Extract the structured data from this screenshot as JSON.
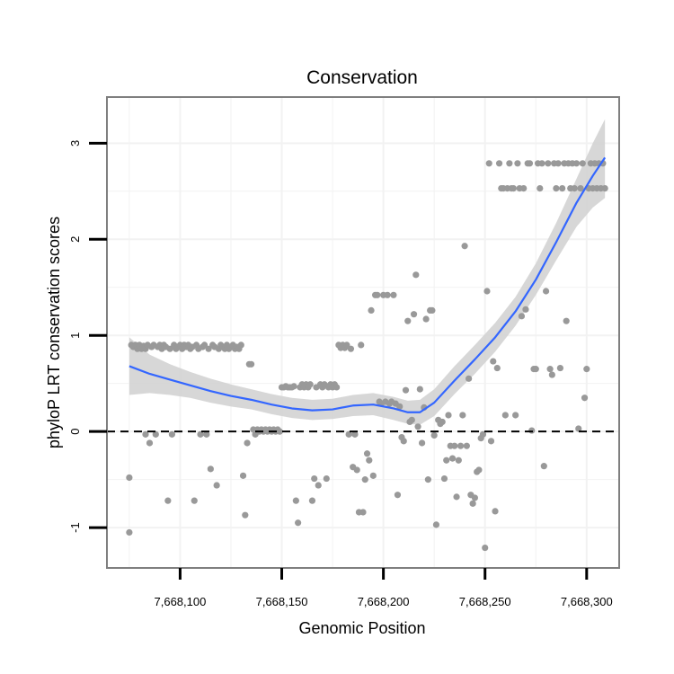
{
  "chart_data": {
    "type": "scatter",
    "title": "Conservation",
    "xlabel": "Genomic Position",
    "ylabel": "phyloP LRT conservation scores",
    "xlim": [
      7668064,
      7668316
    ],
    "ylim": [
      -1.42,
      3.48
    ],
    "x_ticks": [
      {
        "value": 7668100,
        "label": "7,668,100"
      },
      {
        "value": 7668150,
        "label": "7,668,150"
      },
      {
        "value": 7668200,
        "label": "7,668,200"
      },
      {
        "value": 7668250,
        "label": "7,668,250"
      },
      {
        "value": 7668300,
        "label": "7,668,300"
      }
    ],
    "y_ticks": [
      {
        "value": -1,
        "label": "-1"
      },
      {
        "value": 0,
        "label": "0"
      },
      {
        "value": 1,
        "label": "1"
      },
      {
        "value": 2,
        "label": "2"
      },
      {
        "value": 3,
        "label": "3"
      }
    ],
    "grid": true,
    "reference_line": {
      "y": 0,
      "style": "dashed"
    },
    "colors": {
      "points": "#999999",
      "smooth": "#3366ff",
      "ribbon": "#d3d3d3",
      "border": "#7f7f7f",
      "grid": "#f2f2f2",
      "reference": "#000000"
    },
    "points": [
      {
        "x": 7668075,
        "y": -0.48
      },
      {
        "x": 7668075,
        "y": -1.05
      },
      {
        "x": 7668076,
        "y": 0.9
      },
      {
        "x": 7668077,
        "y": 0.88
      },
      {
        "x": 7668078,
        "y": 0.9
      },
      {
        "x": 7668079,
        "y": 0.86
      },
      {
        "x": 7668080,
        "y": 0.9
      },
      {
        "x": 7668081,
        "y": 0.86
      },
      {
        "x": 7668082,
        "y": 0.89
      },
      {
        "x": 7668083,
        "y": -0.03
      },
      {
        "x": 7668083,
        "y": 0.86
      },
      {
        "x": 7668084,
        "y": 0.9
      },
      {
        "x": 7668085,
        "y": -0.12
      },
      {
        "x": 7668086,
        "y": 0.88
      },
      {
        "x": 7668087,
        "y": 0.9
      },
      {
        "x": 7668088,
        "y": -0.03
      },
      {
        "x": 7668089,
        "y": 0.88
      },
      {
        "x": 7668090,
        "y": 0.9
      },
      {
        "x": 7668091,
        "y": 0.86
      },
      {
        "x": 7668092,
        "y": 0.9
      },
      {
        "x": 7668093,
        "y": 0.88
      },
      {
        "x": 7668094,
        "y": -0.72
      },
      {
        "x": 7668095,
        "y": 0.86
      },
      {
        "x": 7668096,
        "y": -0.03
      },
      {
        "x": 7668097,
        "y": 0.9
      },
      {
        "x": 7668098,
        "y": 0.86
      },
      {
        "x": 7668099,
        "y": 0.88
      },
      {
        "x": 7668100,
        "y": 0.9
      },
      {
        "x": 7668101,
        "y": 0.86
      },
      {
        "x": 7668102,
        "y": 0.9
      },
      {
        "x": 7668103,
        "y": 0.88
      },
      {
        "x": 7668104,
        "y": 0.9
      },
      {
        "x": 7668105,
        "y": 0.86
      },
      {
        "x": 7668106,
        "y": 0.88
      },
      {
        "x": 7668107,
        "y": -0.72
      },
      {
        "x": 7668108,
        "y": 0.9
      },
      {
        "x": 7668109,
        "y": 0.86
      },
      {
        "x": 7668110,
        "y": -0.03
      },
      {
        "x": 7668111,
        "y": 0.88
      },
      {
        "x": 7668112,
        "y": 0.9
      },
      {
        "x": 7668113,
        "y": -0.03
      },
      {
        "x": 7668114,
        "y": 0.86
      },
      {
        "x": 7668115,
        "y": -0.39
      },
      {
        "x": 7668116,
        "y": 0.9
      },
      {
        "x": 7668117,
        "y": 0.88
      },
      {
        "x": 7668118,
        "y": -0.56
      },
      {
        "x": 7668119,
        "y": 0.86
      },
      {
        "x": 7668120,
        "y": 0.9
      },
      {
        "x": 7668121,
        "y": 0.88
      },
      {
        "x": 7668122,
        "y": 0.86
      },
      {
        "x": 7668123,
        "y": 0.9
      },
      {
        "x": 7668124,
        "y": 0.86
      },
      {
        "x": 7668125,
        "y": 0.88
      },
      {
        "x": 7668126,
        "y": 0.9
      },
      {
        "x": 7668127,
        "y": 0.86
      },
      {
        "x": 7668128,
        "y": 0.88
      },
      {
        "x": 7668129,
        "y": 0.86
      },
      {
        "x": 7668130,
        "y": 0.9
      },
      {
        "x": 7668131,
        "y": -0.46
      },
      {
        "x": 7668132,
        "y": -0.87
      },
      {
        "x": 7668133,
        "y": -0.12
      },
      {
        "x": 7668134,
        "y": 0.7
      },
      {
        "x": 7668135,
        "y": 0.7
      },
      {
        "x": 7668136,
        "y": 0.02
      },
      {
        "x": 7668137,
        "y": -0.03
      },
      {
        "x": 7668138,
        "y": 0.02
      },
      {
        "x": 7668139,
        "y": 0.0
      },
      {
        "x": 7668140,
        "y": 0.02
      },
      {
        "x": 7668141,
        "y": 0.0
      },
      {
        "x": 7668142,
        "y": 0.02
      },
      {
        "x": 7668143,
        "y": 0.0
      },
      {
        "x": 7668144,
        "y": 0.02
      },
      {
        "x": 7668145,
        "y": 0.0
      },
      {
        "x": 7668146,
        "y": 0.02
      },
      {
        "x": 7668147,
        "y": 0.0
      },
      {
        "x": 7668148,
        "y": 0.02
      },
      {
        "x": 7668149,
        "y": 0.0
      },
      {
        "x": 7668150,
        "y": 0.46
      },
      {
        "x": 7668151,
        "y": 0.46
      },
      {
        "x": 7668152,
        "y": 0.47
      },
      {
        "x": 7668153,
        "y": 0.46
      },
      {
        "x": 7668154,
        "y": 0.46
      },
      {
        "x": 7668155,
        "y": 0.46
      },
      {
        "x": 7668156,
        "y": 0.47
      },
      {
        "x": 7668157,
        "y": -0.72
      },
      {
        "x": 7668158,
        "y": -0.95
      },
      {
        "x": 7668159,
        "y": 0.46
      },
      {
        "x": 7668160,
        "y": 0.49
      },
      {
        "x": 7668161,
        "y": 0.46
      },
      {
        "x": 7668162,
        "y": 0.49
      },
      {
        "x": 7668163,
        "y": 0.46
      },
      {
        "x": 7668164,
        "y": 0.49
      },
      {
        "x": 7668165,
        "y": -0.72
      },
      {
        "x": 7668166,
        "y": -0.49
      },
      {
        "x": 7668167,
        "y": 0.46
      },
      {
        "x": 7668168,
        "y": -0.56
      },
      {
        "x": 7668169,
        "y": 0.49
      },
      {
        "x": 7668170,
        "y": 0.46
      },
      {
        "x": 7668171,
        "y": 0.49
      },
      {
        "x": 7668172,
        "y": -0.49
      },
      {
        "x": 7668173,
        "y": 0.46
      },
      {
        "x": 7668174,
        "y": 0.49
      },
      {
        "x": 7668175,
        "y": 0.46
      },
      {
        "x": 7668176,
        "y": 0.49
      },
      {
        "x": 7668177,
        "y": 0.46
      },
      {
        "x": 7668178,
        "y": 0.9
      },
      {
        "x": 7668179,
        "y": 0.87
      },
      {
        "x": 7668180,
        "y": 0.9
      },
      {
        "x": 7668181,
        "y": 0.87
      },
      {
        "x": 7668182,
        "y": 0.9
      },
      {
        "x": 7668183,
        "y": -0.03
      },
      {
        "x": 7668184,
        "y": 0.86
      },
      {
        "x": 7668185,
        "y": -0.37
      },
      {
        "x": 7668186,
        "y": -0.03
      },
      {
        "x": 7668187,
        "y": -0.4
      },
      {
        "x": 7668188,
        "y": -0.84
      },
      {
        "x": 7668189,
        "y": 0.9
      },
      {
        "x": 7668190,
        "y": -0.84
      },
      {
        "x": 7668191,
        "y": -0.5
      },
      {
        "x": 7668192,
        "y": -0.23
      },
      {
        "x": 7668193,
        "y": -0.3
      },
      {
        "x": 7668194,
        "y": 1.26
      },
      {
        "x": 7668195,
        "y": -0.46
      },
      {
        "x": 7668196,
        "y": 1.42
      },
      {
        "x": 7668197,
        "y": 1.42
      },
      {
        "x": 7668198,
        "y": 0.31
      },
      {
        "x": 7668199,
        "y": 0.29
      },
      {
        "x": 7668200,
        "y": 1.42
      },
      {
        "x": 7668201,
        "y": 0.31
      },
      {
        "x": 7668202,
        "y": 1.42
      },
      {
        "x": 7668203,
        "y": 0.29
      },
      {
        "x": 7668204,
        "y": 0.31
      },
      {
        "x": 7668205,
        "y": 1.42
      },
      {
        "x": 7668206,
        "y": 0.29
      },
      {
        "x": 7668207,
        "y": -0.66
      },
      {
        "x": 7668208,
        "y": 0.26
      },
      {
        "x": 7668209,
        "y": -0.06
      },
      {
        "x": 7668210,
        "y": -0.1
      },
      {
        "x": 7668211,
        "y": 0.43
      },
      {
        "x": 7668212,
        "y": 1.15
      },
      {
        "x": 7668213,
        "y": 0.1
      },
      {
        "x": 7668214,
        "y": 0.12
      },
      {
        "x": 7668215,
        "y": 1.22
      },
      {
        "x": 7668216,
        "y": 1.63
      },
      {
        "x": 7668217,
        "y": 0.05
      },
      {
        "x": 7668218,
        "y": 0.44
      },
      {
        "x": 7668219,
        "y": -0.12
      },
      {
        "x": 7668220,
        "y": 0.25
      },
      {
        "x": 7668221,
        "y": 1.17
      },
      {
        "x": 7668222,
        "y": -0.5
      },
      {
        "x": 7668223,
        "y": 1.26
      },
      {
        "x": 7668224,
        "y": 1.26
      },
      {
        "x": 7668225,
        "y": -0.04
      },
      {
        "x": 7668226,
        "y": -0.97
      },
      {
        "x": 7668227,
        "y": 0.12
      },
      {
        "x": 7668228,
        "y": 0.08
      },
      {
        "x": 7668229,
        "y": 0.1
      },
      {
        "x": 7668230,
        "y": -0.49
      },
      {
        "x": 7668231,
        "y": -0.3
      },
      {
        "x": 7668232,
        "y": 0.17
      },
      {
        "x": 7668233,
        "y": -0.15
      },
      {
        "x": 7668234,
        "y": -0.28
      },
      {
        "x": 7668235,
        "y": -0.15
      },
      {
        "x": 7668236,
        "y": -0.68
      },
      {
        "x": 7668237,
        "y": -0.3
      },
      {
        "x": 7668238,
        "y": -0.15
      },
      {
        "x": 7668239,
        "y": 0.17
      },
      {
        "x": 7668240,
        "y": 1.93
      },
      {
        "x": 7668241,
        "y": -0.15
      },
      {
        "x": 7668242,
        "y": 0.55
      },
      {
        "x": 7668243,
        "y": -0.66
      },
      {
        "x": 7668244,
        "y": -0.75
      },
      {
        "x": 7668245,
        "y": -0.69
      },
      {
        "x": 7668246,
        "y": -0.42
      },
      {
        "x": 7668247,
        "y": -0.4
      },
      {
        "x": 7668248,
        "y": -0.07
      },
      {
        "x": 7668249,
        "y": -0.03
      },
      {
        "x": 7668250,
        "y": -1.21
      },
      {
        "x": 7668251,
        "y": 1.46
      },
      {
        "x": 7668252,
        "y": 2.79
      },
      {
        "x": 7668253,
        "y": -0.1
      },
      {
        "x": 7668254,
        "y": 0.73
      },
      {
        "x": 7668255,
        "y": -0.83
      },
      {
        "x": 7668256,
        "y": 0.66
      },
      {
        "x": 7668257,
        "y": 2.79
      },
      {
        "x": 7668258,
        "y": 2.53
      },
      {
        "x": 7668259,
        "y": 2.53
      },
      {
        "x": 7668260,
        "y": 0.17
      },
      {
        "x": 7668261,
        "y": 2.53
      },
      {
        "x": 7668262,
        "y": 2.79
      },
      {
        "x": 7668263,
        "y": 2.53
      },
      {
        "x": 7668264,
        "y": 2.53
      },
      {
        "x": 7668265,
        "y": 0.17
      },
      {
        "x": 7668266,
        "y": 2.79
      },
      {
        "x": 7668267,
        "y": 2.53
      },
      {
        "x": 7668268,
        "y": 1.2
      },
      {
        "x": 7668269,
        "y": 2.53
      },
      {
        "x": 7668270,
        "y": 1.27
      },
      {
        "x": 7668271,
        "y": 2.79
      },
      {
        "x": 7668272,
        "y": 2.79
      },
      {
        "x": 7668273,
        "y": 0.01
      },
      {
        "x": 7668274,
        "y": 0.65
      },
      {
        "x": 7668275,
        "y": 0.65
      },
      {
        "x": 7668276,
        "y": 2.79
      },
      {
        "x": 7668277,
        "y": 2.53
      },
      {
        "x": 7668278,
        "y": 2.79
      },
      {
        "x": 7668279,
        "y": -0.36
      },
      {
        "x": 7668280,
        "y": 1.46
      },
      {
        "x": 7668281,
        "y": 2.79
      },
      {
        "x": 7668282,
        "y": 0.65
      },
      {
        "x": 7668283,
        "y": 0.59
      },
      {
        "x": 7668284,
        "y": 2.79
      },
      {
        "x": 7668285,
        "y": 2.53
      },
      {
        "x": 7668286,
        "y": 2.79
      },
      {
        "x": 7668287,
        "y": 0.66
      },
      {
        "x": 7668288,
        "y": 2.53
      },
      {
        "x": 7668289,
        "y": 2.79
      },
      {
        "x": 7668290,
        "y": 1.15
      },
      {
        "x": 7668291,
        "y": 2.79
      },
      {
        "x": 7668292,
        "y": 2.53
      },
      {
        "x": 7668293,
        "y": 2.79
      },
      {
        "x": 7668294,
        "y": 2.53
      },
      {
        "x": 7668295,
        "y": 2.79
      },
      {
        "x": 7668296,
        "y": 0.03
      },
      {
        "x": 7668297,
        "y": 2.53
      },
      {
        "x": 7668298,
        "y": 2.79
      },
      {
        "x": 7668299,
        "y": 0.35
      },
      {
        "x": 7668300,
        "y": 0.65
      },
      {
        "x": 7668301,
        "y": 2.53
      },
      {
        "x": 7668302,
        "y": 2.79
      },
      {
        "x": 7668303,
        "y": 2.53
      },
      {
        "x": 7668304,
        "y": 2.79
      },
      {
        "x": 7668305,
        "y": 2.53
      },
      {
        "x": 7668306,
        "y": 2.79
      },
      {
        "x": 7668307,
        "y": 2.53
      },
      {
        "x": 7668308,
        "y": 2.79
      },
      {
        "x": 7668309,
        "y": 2.53
      }
    ],
    "smooth": [
      {
        "x": 7668075,
        "y": 0.68,
        "lo": 0.38,
        "hi": 0.98
      },
      {
        "x": 7668085,
        "y": 0.6,
        "lo": 0.4,
        "hi": 0.8
      },
      {
        "x": 7668095,
        "y": 0.54,
        "lo": 0.38,
        "hi": 0.7
      },
      {
        "x": 7668105,
        "y": 0.48,
        "lo": 0.35,
        "hi": 0.62
      },
      {
        "x": 7668115,
        "y": 0.42,
        "lo": 0.3,
        "hi": 0.55
      },
      {
        "x": 7668125,
        "y": 0.37,
        "lo": 0.26,
        "hi": 0.49
      },
      {
        "x": 7668135,
        "y": 0.33,
        "lo": 0.23,
        "hi": 0.44
      },
      {
        "x": 7668145,
        "y": 0.28,
        "lo": 0.18,
        "hi": 0.39
      },
      {
        "x": 7668155,
        "y": 0.24,
        "lo": 0.14,
        "hi": 0.35
      },
      {
        "x": 7668165,
        "y": 0.22,
        "lo": 0.12,
        "hi": 0.33
      },
      {
        "x": 7668175,
        "y": 0.23,
        "lo": 0.13,
        "hi": 0.34
      },
      {
        "x": 7668185,
        "y": 0.27,
        "lo": 0.16,
        "hi": 0.38
      },
      {
        "x": 7668195,
        "y": 0.28,
        "lo": 0.17,
        "hi": 0.4
      },
      {
        "x": 7668205,
        "y": 0.24,
        "lo": 0.12,
        "hi": 0.36
      },
      {
        "x": 7668212,
        "y": 0.2,
        "lo": 0.08,
        "hi": 0.32
      },
      {
        "x": 7668218,
        "y": 0.2,
        "lo": 0.07,
        "hi": 0.33
      },
      {
        "x": 7668225,
        "y": 0.3,
        "lo": 0.16,
        "hi": 0.44
      },
      {
        "x": 7668235,
        "y": 0.53,
        "lo": 0.39,
        "hi": 0.68
      },
      {
        "x": 7668245,
        "y": 0.75,
        "lo": 0.6,
        "hi": 0.9
      },
      {
        "x": 7668255,
        "y": 0.98,
        "lo": 0.83,
        "hi": 1.13
      },
      {
        "x": 7668265,
        "y": 1.25,
        "lo": 1.1,
        "hi": 1.4
      },
      {
        "x": 7668275,
        "y": 1.58,
        "lo": 1.42,
        "hi": 1.75
      },
      {
        "x": 7668285,
        "y": 1.97,
        "lo": 1.78,
        "hi": 2.17
      },
      {
        "x": 7668295,
        "y": 2.38,
        "lo": 2.13,
        "hi": 2.63
      },
      {
        "x": 7668303,
        "y": 2.66,
        "lo": 2.33,
        "hi": 3.0
      },
      {
        "x": 7668309,
        "y": 2.85,
        "lo": 2.43,
        "hi": 3.25
      }
    ]
  }
}
